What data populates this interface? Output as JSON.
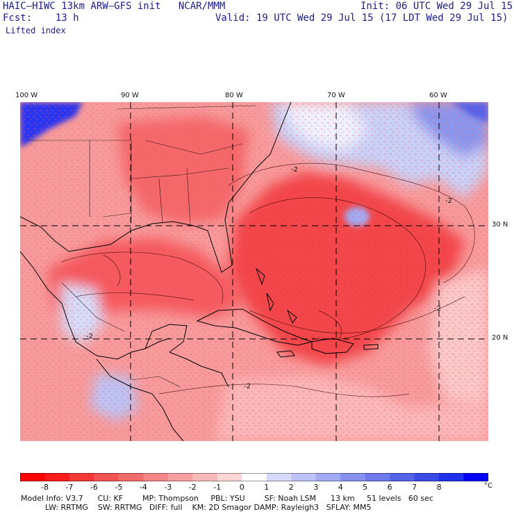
{
  "header": {
    "model_line": "HAIC–HIWC 13km ARW–GFS init   NCAR/MMM",
    "init_line": "Init: 06 UTC Wed 29 Jul 15",
    "fcst_line": "Fcst:    13 h",
    "valid_line": "Valid: 19 UTC Wed 29 Jul 15 (17 LDT Wed 29 Jul 15)",
    "field_name": "Lifted index"
  },
  "map": {
    "lon_labels": [
      "100 W",
      "90 W",
      "80 W",
      "70 W",
      "60 W"
    ],
    "lat_labels": [
      "30 N",
      "20 N"
    ],
    "contour_label": "-2",
    "colors": {
      "strong_red": "#f03a40",
      "mid_red": "#f87a7c",
      "light_red": "#fbb7b8",
      "pale": "#fde4e4",
      "light_blue": "#c8d0f8",
      "mid_blue": "#8a95ee",
      "deep_blue": "#2a2af0",
      "coast": "#000000"
    }
  },
  "colorbar": {
    "labels": [
      "-8",
      "-7",
      "-6",
      "-5",
      "-4",
      "-3",
      "-2",
      "-1",
      "0",
      "1",
      "2",
      "3",
      "4",
      "5",
      "6",
      "7",
      "8"
    ],
    "unit": "°C",
    "colors": [
      "#ff0000",
      "#fb1c1c",
      "#f73838",
      "#f35252",
      "#f26c6c",
      "#f28686",
      "#f4a0a0",
      "#f7baba",
      "#fbd6d6",
      "#ffffff",
      "#d6daf9",
      "#bcc2f5",
      "#a2aaf1",
      "#8892ee",
      "#6e7aeb",
      "#5462e8",
      "#3a4ae6",
      "#2030ea",
      "#0000f6"
    ]
  },
  "model_info": {
    "line1": "Model Info: V3.7      CU: KF        MP: Thompson     PBL: YSU        SF: Noah LSM      13 km     51 levels   60 sec",
    "line2": "          LW: RRTMG    SW: RRTMG   DIFF: full    KM: 2D Smagor DAMP: Rayleigh3   SFLAY: MM5"
  }
}
